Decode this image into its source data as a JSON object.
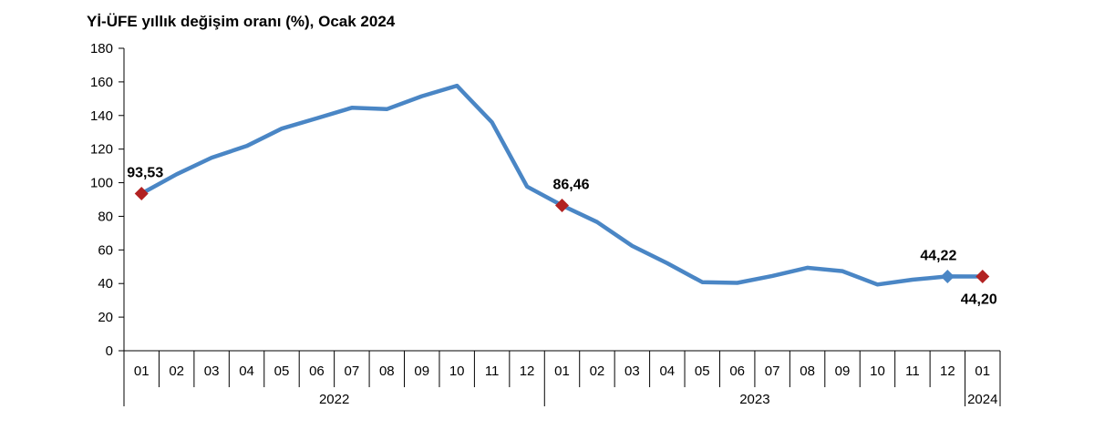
{
  "chart_data": {
    "type": "line",
    "title": "Yİ-ÜFE yıllık değişim oranı (%), Ocak 2024",
    "xlabel": "",
    "ylabel": "",
    "ylim": [
      0,
      180
    ],
    "y_ticks": [
      "0",
      "20",
      "40",
      "60",
      "80",
      "100",
      "120",
      "140",
      "160",
      "180"
    ],
    "categories": [
      "01",
      "02",
      "03",
      "04",
      "05",
      "06",
      "07",
      "08",
      "09",
      "10",
      "11",
      "12",
      "01",
      "02",
      "03",
      "04",
      "05",
      "06",
      "07",
      "08",
      "09",
      "10",
      "11",
      "12",
      "01"
    ],
    "year_groups": [
      {
        "label": "2022",
        "count": 12
      },
      {
        "label": "2023",
        "count": 12
      },
      {
        "label": "2024",
        "count": 1
      }
    ],
    "series": [
      {
        "color": "#4a86c5",
        "values": [
          93.53,
          105.0,
          114.9,
          121.8,
          132.2,
          138.3,
          144.6,
          143.8,
          151.5,
          157.7,
          136.0,
          97.7,
          86.46,
          76.6,
          62.4,
          52.1,
          40.8,
          40.4,
          44.5,
          49.4,
          47.4,
          39.4,
          42.3,
          44.22,
          44.2
        ]
      }
    ],
    "highlights": [
      {
        "index": 0,
        "label": "93,53",
        "marker_color": "#b22222"
      },
      {
        "index": 12,
        "label": "86,46",
        "marker_color": "#b22222"
      },
      {
        "index": 23,
        "label": "44,22",
        "marker_color": "#4a86c5"
      },
      {
        "index": 24,
        "label": "44,20",
        "marker_color": "#b22222"
      }
    ],
    "grid": false,
    "legend": "none"
  }
}
